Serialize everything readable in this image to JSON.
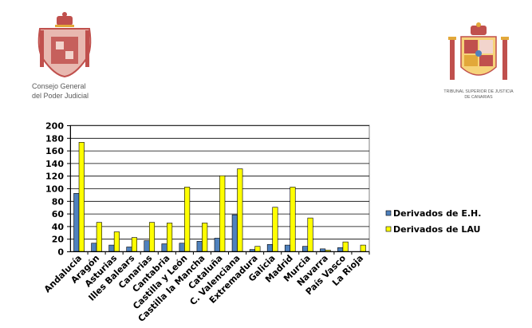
{
  "logos": {
    "left_text_line1": "Consejo General",
    "left_text_line2": "del Poder Judicial",
    "right_text_line1": "TRIBUNAL SUPERIOR DE JUSTICIA",
    "right_text_line2": "DE CANARIAS"
  },
  "colors": {
    "series1": "#4f81bd",
    "series2": "#ffff00",
    "seal_red": "#c0504d",
    "seal_gold": "#e2a83a"
  },
  "chart_data": {
    "type": "bar",
    "title": "",
    "xlabel": "",
    "ylabel": "",
    "ylim": [
      0,
      200
    ],
    "ytick_step": 20,
    "grid": true,
    "legend_position": "right",
    "categories": [
      "Andalucía",
      "Aragón",
      "Asturias",
      "Illes Balears",
      "Canarias",
      "Cantabria",
      "Castilla y León",
      "Castilla la Mancha",
      "Cataluña",
      "C. Valenciana",
      "Extremadura",
      "Galicia",
      "Madrid",
      "Murcia",
      "Navarra",
      "País Vasco",
      "La Rioja"
    ],
    "series": [
      {
        "name": "Derivados de E.H.",
        "color": "#4f81bd",
        "values": [
          92,
          13,
          10,
          7,
          17,
          12,
          13,
          16,
          21,
          58,
          3,
          11,
          10,
          8,
          4,
          6,
          0
        ]
      },
      {
        "name": "Derivados de LAU",
        "color": "#ffff00",
        "values": [
          173,
          46,
          31,
          22,
          46,
          45,
          102,
          45,
          120,
          131,
          8,
          70,
          102,
          53,
          2,
          15,
          10
        ]
      }
    ]
  }
}
